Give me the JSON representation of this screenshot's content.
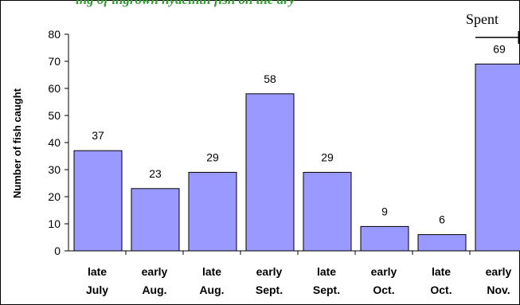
{
  "colors": {
    "bar_fill": "#9999ff",
    "bar_stroke": "#000000",
    "title": "#2e9e2e",
    "axis": "#000000",
    "frame": "#000000",
    "background": "#ffffff"
  },
  "chart_data": {
    "type": "bar",
    "title": "ing of ingrown hyacinth fish on the dry",
    "xlabel": "",
    "ylabel": "Number of fish caught",
    "ylim": [
      0,
      80
    ],
    "yticks": [
      0,
      10,
      20,
      30,
      40,
      50,
      60,
      70,
      80
    ],
    "grid": false,
    "legend": "none",
    "categories": [
      [
        "late",
        "July"
      ],
      [
        "early",
        "Aug."
      ],
      [
        "late",
        "Aug."
      ],
      [
        "early",
        "Sept."
      ],
      [
        "late",
        "Sept."
      ],
      [
        "early",
        "Oct."
      ],
      [
        "late",
        "Oct."
      ],
      [
        "early",
        "Nov."
      ]
    ],
    "values": [
      37,
      23,
      29,
      58,
      29,
      9,
      6,
      69
    ],
    "data_labels": [
      "37",
      "23",
      "29",
      "58",
      "29",
      "9",
      "6",
      "69"
    ],
    "annotations": [
      {
        "text": "Spent",
        "category_index": 7,
        "arrow": "right"
      }
    ]
  }
}
